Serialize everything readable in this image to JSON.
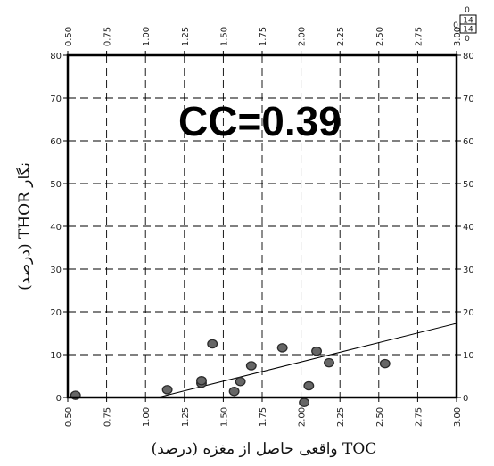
{
  "chart_data": {
    "type": "scatter",
    "title": "",
    "xlabel": "TOC واقعی حاصل از مغزه (درصد)",
    "ylabel": "نگار THOR (درصد)",
    "xlim": [
      0.5,
      3.0
    ],
    "ylim": [
      0,
      80
    ],
    "x_ticks": [
      "0.50",
      "0.75",
      "1.00",
      "1.25",
      "1.50",
      "1.75",
      "2.00",
      "2.25",
      "2.50",
      "2.75",
      "3.00"
    ],
    "y_ticks": [
      "0",
      "10",
      "20",
      "30",
      "40",
      "50",
      "60",
      "70",
      "80"
    ],
    "grid": true,
    "annotation": "CC=0.39",
    "point_count": {
      "top": "0",
      "box_upper": "14",
      "box_lower": "14",
      "bottom": "0"
    },
    "points": [
      {
        "x": 0.55,
        "y": 0.5
      },
      {
        "x": 1.14,
        "y": 1.8
      },
      {
        "x": 1.36,
        "y": 3.3
      },
      {
        "x": 1.36,
        "y": 3.9
      },
      {
        "x": 1.43,
        "y": 12.5
      },
      {
        "x": 1.57,
        "y": 1.4
      },
      {
        "x": 1.61,
        "y": 3.7
      },
      {
        "x": 1.68,
        "y": 7.4
      },
      {
        "x": 1.88,
        "y": 11.6
      },
      {
        "x": 2.02,
        "y": -1.2
      },
      {
        "x": 2.05,
        "y": 2.7
      },
      {
        "x": 2.1,
        "y": 10.8
      },
      {
        "x": 2.18,
        "y": 8.1
      },
      {
        "x": 2.54,
        "y": 7.9
      }
    ],
    "fit_line": {
      "x": [
        1.08,
        3.0
      ],
      "y": [
        0,
        17.3
      ]
    }
  }
}
